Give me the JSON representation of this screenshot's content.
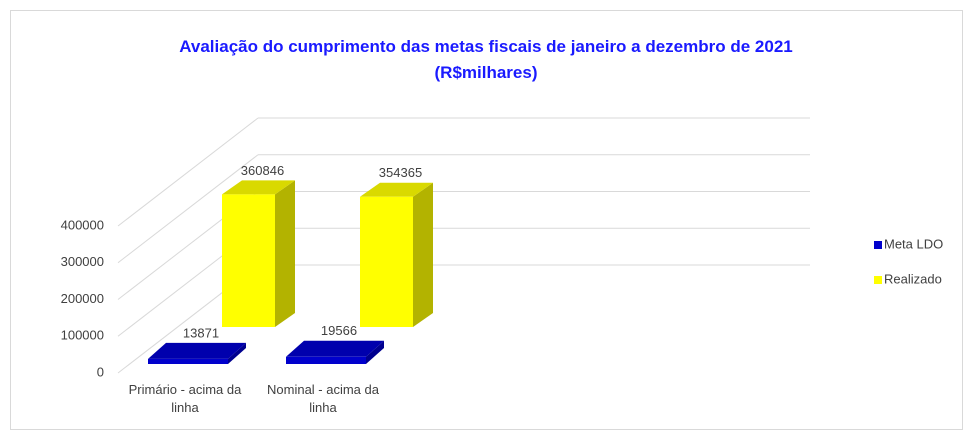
{
  "chart_data": {
    "type": "bar3d",
    "title": "Avaliação do cumprimento das metas fiscais de janeiro a dezembro de 2021 (R$milhares)",
    "categories": [
      "Primário - acima da linha",
      "Nominal - acima da linha"
    ],
    "series": [
      {
        "name": "Meta LDO",
        "color": "#0000cc",
        "values": [
          13871,
          19566
        ]
      },
      {
        "name": "Realizado",
        "color": "#ffff00",
        "values": [
          360846,
          354365
        ]
      }
    ],
    "ylim": [
      0,
      400000
    ],
    "yticks": [
      0,
      100000,
      200000,
      300000,
      400000
    ],
    "grid": true,
    "legend": "right"
  }
}
